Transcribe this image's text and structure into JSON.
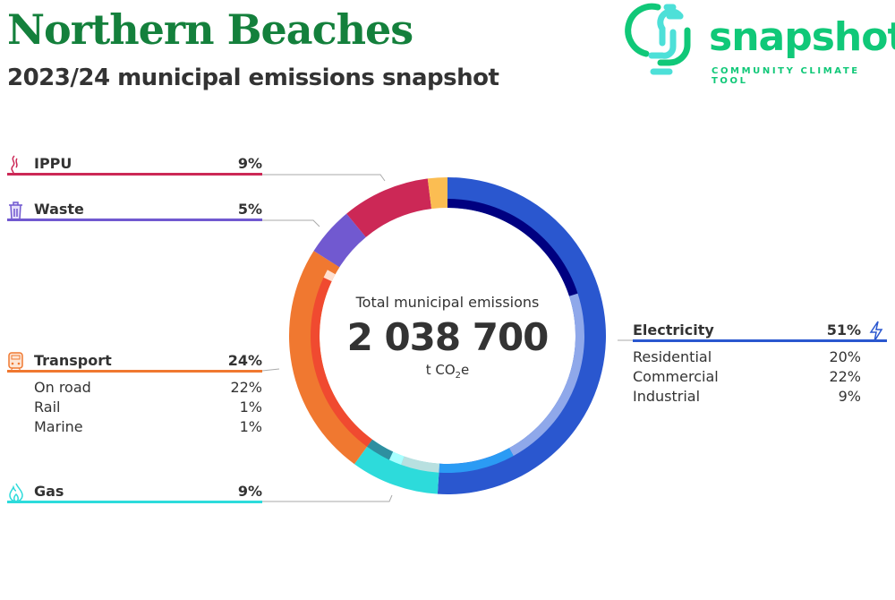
{
  "header": {
    "title": "Northern Beaches",
    "subtitle": "2023/24 municipal emissions snapshot"
  },
  "logo": {
    "word": "snapshot",
    "tagline": "COMMUNITY CLIMATE TOOL",
    "colors": [
      "#10c878",
      "#4de0d8"
    ]
  },
  "center": {
    "label": "Total municipal emissions",
    "value": "2 038 700",
    "unit_prefix": "t CO",
    "unit_sub": "2",
    "unit_suffix": "e"
  },
  "categories": {
    "ippu": {
      "label": "IPPU",
      "pct": "9%",
      "icon": "smoke-icon",
      "color": "#cc2856"
    },
    "waste": {
      "label": "Waste",
      "pct": "5%",
      "icon": "trash-bin-icon",
      "color": "#7159d0"
    },
    "transport": {
      "label": "Transport",
      "pct": "24%",
      "icon": "train-icon",
      "color": "#f07830",
      "subs": [
        {
          "label": "On road",
          "pct": "22%"
        },
        {
          "label": "Rail",
          "pct": "1%"
        },
        {
          "label": "Marine",
          "pct": "1%"
        }
      ]
    },
    "gas": {
      "label": "Gas",
      "pct": "9%",
      "icon": "flame-icon",
      "color": "#2ddbdb"
    },
    "electricity": {
      "label": "Electricity",
      "pct": "51%",
      "icon": "lightning-icon",
      "color": "#2a57cf",
      "subs": [
        {
          "label": "Residential",
          "pct": "20%"
        },
        {
          "label": "Commercial",
          "pct": "22%"
        },
        {
          "label": "Industrial",
          "pct": "9%"
        }
      ]
    }
  },
  "chart_data": {
    "type": "pie",
    "total": 2038700,
    "unit": "t CO2e",
    "outer": [
      {
        "name": "Electricity",
        "value": 51,
        "color": "#2a57cf"
      },
      {
        "name": "Gas",
        "value": 9,
        "color": "#2ddbdb"
      },
      {
        "name": "Transport",
        "value": 24,
        "color": "#f07830"
      },
      {
        "name": "Waste",
        "value": 5,
        "color": "#7159d0"
      },
      {
        "name": "IPPU",
        "value": 9,
        "color": "#cc2856"
      },
      {
        "value": 2,
        "color": "#fbbd52"
      }
    ],
    "inner": [
      {
        "name": "Residential",
        "value": 20,
        "color": "#000080"
      },
      {
        "name": "Commercial",
        "value": 22,
        "color": "#8fa8ea"
      },
      {
        "name": "Industrial",
        "value": 9,
        "color": "#2b9bf4"
      },
      {
        "value": 4.5,
        "color": "#b8e0e0"
      },
      {
        "value": 1.5,
        "color": "#a8ffff"
      },
      {
        "value": 3,
        "color": "#2e8fa0"
      },
      {
        "name": "On road",
        "value": 22,
        "color": "#f04a30"
      },
      {
        "name": "Rail",
        "value": 1,
        "color": "#ffe0d0"
      },
      {
        "name": "Marine",
        "value": 1,
        "color": "#f07830"
      },
      {
        "value": 16,
        "color": "none"
      }
    ]
  }
}
